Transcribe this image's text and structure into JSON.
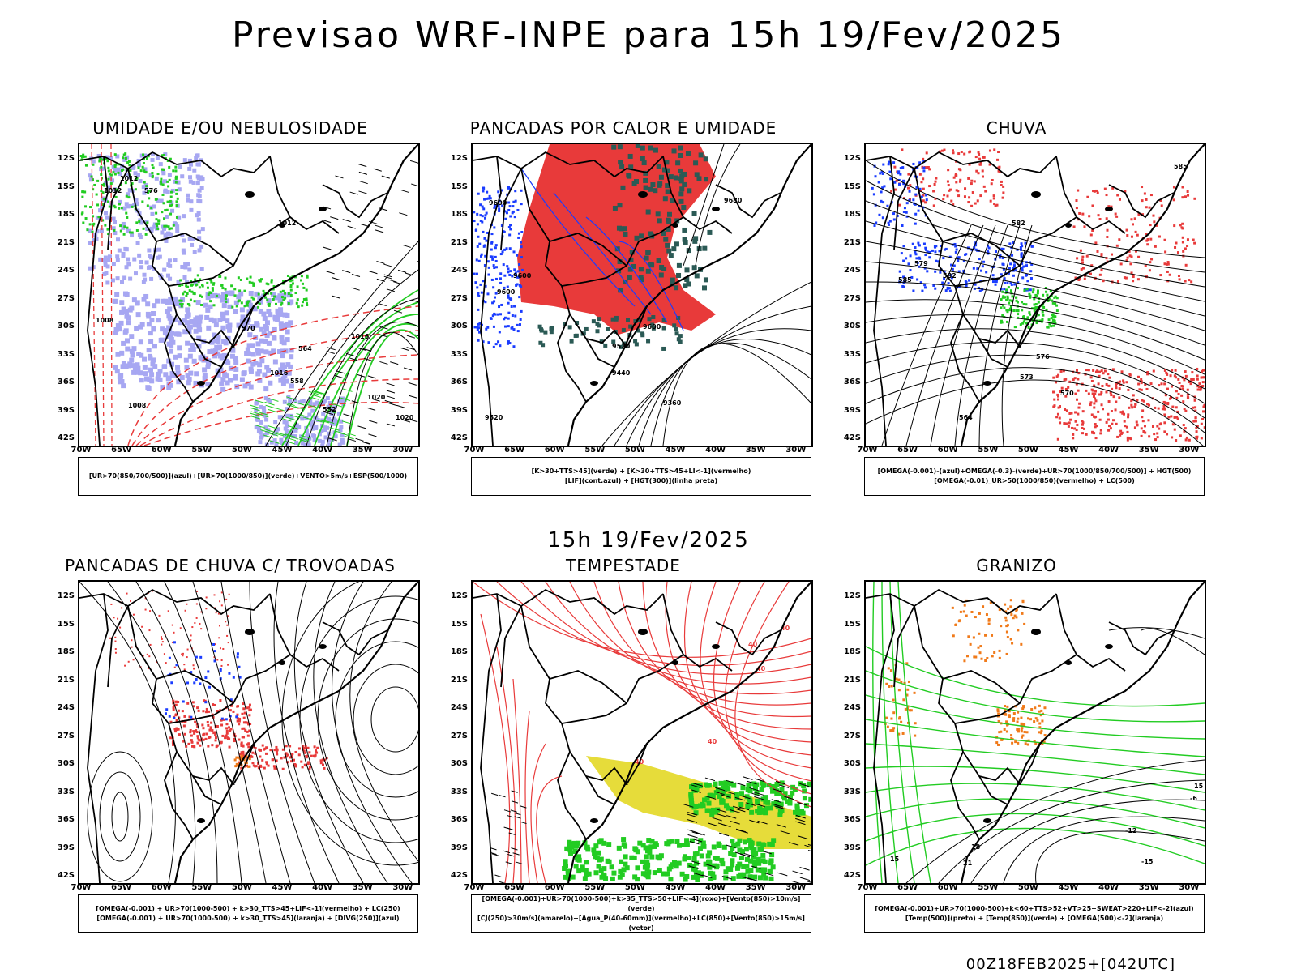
{
  "title": "Previsao WRF-INPE  para 15h 19/Fev/2025",
  "mid_title": "15h 19/Fev/2025",
  "footer": "00Z18FEB2025+[042UTC]",
  "axes": {
    "lat_labels": [
      "12S",
      "15S",
      "18S",
      "21S",
      "24S",
      "27S",
      "30S",
      "33S",
      "36S",
      "39S",
      "42S"
    ],
    "lon_labels": [
      "70W",
      "65W",
      "60W",
      "55W",
      "50W",
      "45W",
      "40W",
      "35W",
      "30W"
    ]
  },
  "colors": {
    "red": "#e83a3a",
    "green": "#22cc22",
    "blue": "#1a3cff",
    "lavender": "#a7a7f2",
    "darkteal": "#2b5a55",
    "yellow": "#e6dc3a",
    "orange": "#f07a1a",
    "black": "#000000"
  },
  "panels": [
    {
      "id": "umidade",
      "title": "UMIDADE E/OU NEBULOSIDADE",
      "legend": [
        "[UR>70(850/700/500)](azul)+[UR>70(1000/850)](verde)+VENTO>5m/s+ESP(500/1000)"
      ],
      "contour_labels": [
        "1012",
        "1012",
        "1012",
        "1016",
        "1016",
        "1020",
        "1020",
        "1008",
        "1008",
        "576",
        "570",
        "564",
        "558",
        "552"
      ]
    },
    {
      "id": "pancadas_calor",
      "title": "PANCADAS POR CALOR E UMIDADE",
      "legend": [
        "[K>30+TTS>45](verde) + [K>30+TTS>45+LI<-1](vermelho)",
        "[LIF](cont.azul) + [HGT(300)](linha preta)"
      ],
      "contour_labels": [
        "9680",
        "9600",
        "9600",
        "9600",
        "9520",
        "9520",
        "9440",
        "9360",
        "9600"
      ]
    },
    {
      "id": "chuva",
      "title": "CHUVA",
      "legend": [
        "[OMEGA(-0.001)-(azul)+OMEGA(-0.3)-(verde)+UR>70(1000/850/700/500)] + HGT(500)",
        "[OMEGA(-0.01)_UR>50(1000/850)(vermelho) + LC(500)"
      ],
      "contour_labels": [
        "585",
        "582",
        "579",
        "576",
        "573",
        "570",
        "564",
        "585",
        "582"
      ]
    },
    {
      "id": "pancadas_trovoadas",
      "title": "PANCADAS DE CHUVA C/ TROVOADAS",
      "legend": [
        "[OMEGA(-0.001) + UR>70(1000-500) + k>30_TTS>45+LIF<-1](vermelho) + LC(250)",
        "[OMEGA(-0.001) + UR>70(1000-500) + k>30_TTS>45](laranja) + [DIVG(250)](azul)"
      ],
      "contour_labels": []
    },
    {
      "id": "tempestade",
      "title": "TEMPESTADE",
      "legend": [
        "[OMEGA(-0.001)+UR>70(1000-500)+k>35_TTS>50+LIF<-4](roxo)+[Vento(850)>10m/s](verde)",
        "[CJ(250)>30m/s](amarelo)+[Agua_P(40-60mm)](vermelho)+LC(850)+[Vento(850)>15m/s](vetor)"
      ],
      "contour_labels": [
        "40",
        "40",
        "40",
        "40",
        "40"
      ]
    },
    {
      "id": "granizo",
      "title": "GRANIZO",
      "legend": [
        "[OMEGA(-0.001)+UR>70(1000-500)+k<60+TTS>52+VT>25+SWEAT>220+LIF<-2](azul)",
        "[Temp(500)](preto) + [Temp(850)](verde) + [OMEGA(500)<-2](laranja)"
      ],
      "contour_labels": [
        "-6",
        "-12",
        "-15",
        "15",
        "15",
        "18",
        "21"
      ]
    }
  ]
}
